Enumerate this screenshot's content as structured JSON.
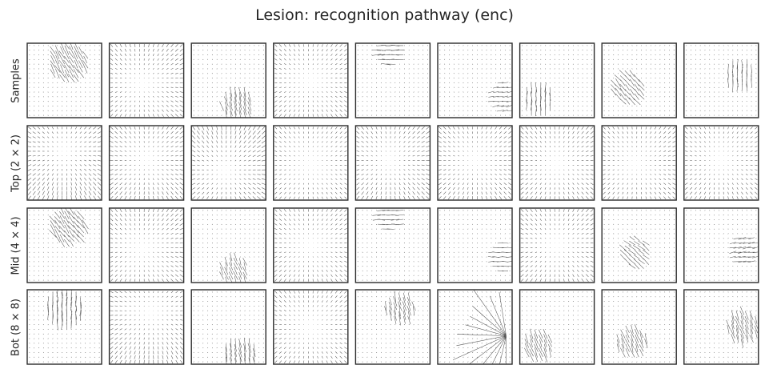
{
  "title": "Lesion: recognition pathway (enc)",
  "chart_data": {
    "type": "quiver-grid",
    "title": "Lesion: recognition pathway (enc)",
    "rows": [
      "Samples",
      "Top (2 × 2)",
      "Mid (4 × 4)",
      "Bot (8 × 8)"
    ],
    "columns": 9,
    "ticks": "none",
    "panels": [
      [
        {
          "pattern": "patch",
          "cx": 0.55,
          "cy": 0.25,
          "r": 0.26,
          "angle": -60,
          "strength": 1.0
        },
        {
          "pattern": "outward",
          "cx": 0.45,
          "cy": 0.55,
          "strength": 0.5
        },
        {
          "pattern": "patch",
          "cx": 0.62,
          "cy": 0.85,
          "r": 0.22,
          "angle": -75,
          "strength": 1.0
        },
        {
          "pattern": "outward",
          "cx": 0.5,
          "cy": 0.5,
          "strength": 0.45
        },
        {
          "pattern": "patch",
          "cx": 0.45,
          "cy": 0.12,
          "r": 0.18,
          "angle": 0,
          "strength": 0.9
        },
        {
          "pattern": "patch",
          "cx": 0.9,
          "cy": 0.72,
          "r": 0.2,
          "angle": 10,
          "strength": 0.7
        },
        {
          "pattern": "patch",
          "cx": 0.25,
          "cy": 0.75,
          "r": 0.2,
          "angle": 90,
          "strength": 1.0
        },
        {
          "pattern": "patch",
          "cx": 0.35,
          "cy": 0.6,
          "r": 0.22,
          "angle": -50,
          "strength": 0.9
        },
        {
          "pattern": "patch",
          "cx": 0.75,
          "cy": 0.45,
          "r": 0.2,
          "angle": 90,
          "strength": 0.9
        }
      ],
      [
        {
          "pattern": "outward",
          "cx": 0.5,
          "cy": 0.35,
          "strength": 0.6
        },
        {
          "pattern": "outward",
          "cx": 0.5,
          "cy": 0.45,
          "strength": 0.55
        },
        {
          "pattern": "outward",
          "cx": 0.45,
          "cy": 0.6,
          "strength": 0.6
        },
        {
          "pattern": "outward",
          "cx": 0.5,
          "cy": 0.5,
          "strength": 0.4
        },
        {
          "pattern": "outward",
          "cx": 0.45,
          "cy": 0.45,
          "strength": 0.55
        },
        {
          "pattern": "outward",
          "cx": 0.5,
          "cy": 0.45,
          "strength": 0.5
        },
        {
          "pattern": "outward",
          "cx": 0.5,
          "cy": 0.5,
          "strength": 0.5
        },
        {
          "pattern": "outward",
          "cx": 0.45,
          "cy": 0.5,
          "strength": 0.45
        },
        {
          "pattern": "outward",
          "cx": 0.5,
          "cy": 0.45,
          "strength": 0.45
        }
      ],
      [
        {
          "pattern": "patch",
          "cx": 0.55,
          "cy": 0.25,
          "r": 0.24,
          "angle": -55,
          "strength": 1.0
        },
        {
          "pattern": "outward",
          "cx": 0.45,
          "cy": 0.55,
          "strength": 0.5
        },
        {
          "pattern": "patch",
          "cx": 0.58,
          "cy": 0.85,
          "r": 0.2,
          "angle": -70,
          "strength": 0.9
        },
        {
          "pattern": "outward",
          "cx": 0.5,
          "cy": 0.5,
          "strength": 0.45
        },
        {
          "pattern": "patch",
          "cx": 0.45,
          "cy": 0.12,
          "r": 0.18,
          "angle": 0,
          "strength": 0.85
        },
        {
          "pattern": "patch",
          "cx": 0.88,
          "cy": 0.65,
          "r": 0.2,
          "angle": 0,
          "strength": 0.7
        },
        {
          "pattern": "outward",
          "cx": 0.5,
          "cy": 0.5,
          "strength": 0.5
        },
        {
          "pattern": "patch",
          "cx": 0.45,
          "cy": 0.6,
          "r": 0.2,
          "angle": -40,
          "strength": 0.8
        },
        {
          "pattern": "patch",
          "cx": 0.82,
          "cy": 0.55,
          "r": 0.2,
          "angle": 10,
          "strength": 0.8
        }
      ],
      [
        {
          "pattern": "patch",
          "cx": 0.5,
          "cy": 0.25,
          "r": 0.26,
          "angle": 90,
          "strength": 1.0
        },
        {
          "pattern": "outward",
          "cx": 0.55,
          "cy": 0.3,
          "strength": 0.5
        },
        {
          "pattern": "patch",
          "cx": 0.65,
          "cy": 0.88,
          "r": 0.22,
          "angle": -80,
          "strength": 1.0
        },
        {
          "pattern": "outward",
          "cx": 0.5,
          "cy": 0.5,
          "strength": 0.45
        },
        {
          "pattern": "patch",
          "cx": 0.6,
          "cy": 0.25,
          "r": 0.2,
          "angle": -75,
          "strength": 1.0
        },
        {
          "pattern": "fan",
          "cx": 0.92,
          "cy": 0.62,
          "strength": 1.0
        },
        {
          "pattern": "patch",
          "cx": 0.25,
          "cy": 0.75,
          "r": 0.22,
          "angle": -70,
          "strength": 1.0
        },
        {
          "pattern": "patch",
          "cx": 0.4,
          "cy": 0.7,
          "r": 0.2,
          "angle": -70,
          "strength": 1.0
        },
        {
          "pattern": "patch",
          "cx": 0.8,
          "cy": 0.5,
          "r": 0.22,
          "angle": -70,
          "strength": 1.0
        }
      ]
    ]
  }
}
